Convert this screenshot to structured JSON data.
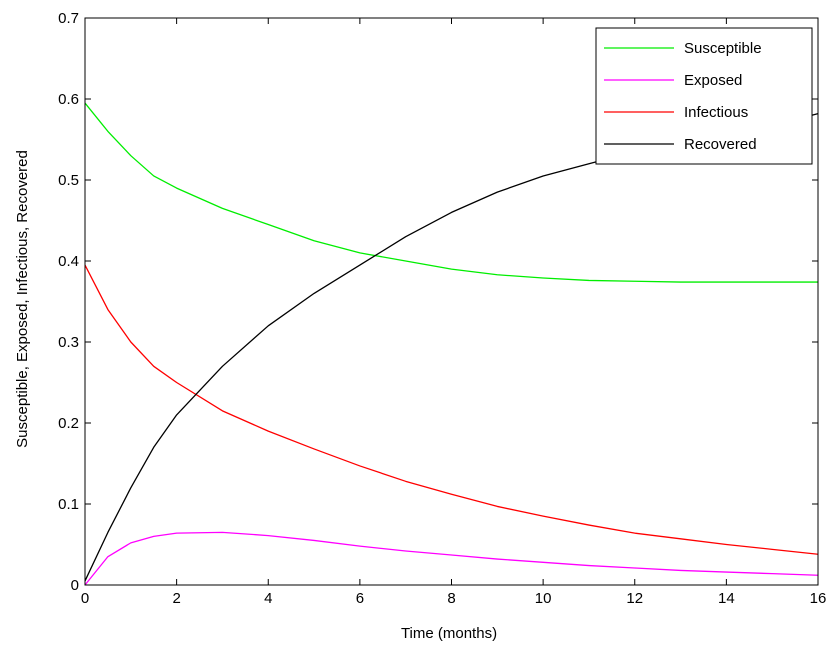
{
  "chart_data": {
    "type": "line",
    "xlabel": "Time (months)",
    "ylabel": "Susceptible, Exposed, Infectious, Recovered",
    "xlim": [
      0,
      16
    ],
    "ylim": [
      0,
      0.7
    ],
    "xticks": [
      "0",
      "2",
      "4",
      "6",
      "8",
      "10",
      "12",
      "14",
      "16"
    ],
    "yticks": [
      "0",
      "0.1",
      "0.2",
      "0.3",
      "0.4",
      "0.5",
      "0.6",
      "0.7"
    ],
    "grid": false,
    "legend_position": "top-right",
    "x": [
      0,
      0.5,
      1,
      1.5,
      2,
      3,
      4,
      5,
      6,
      7,
      8,
      9,
      10,
      11,
      12,
      13,
      14,
      15,
      16
    ],
    "series": [
      {
        "name": "Susceptible",
        "color": "#00ee00",
        "values": [
          0.595,
          0.56,
          0.53,
          0.505,
          0.49,
          0.465,
          0.445,
          0.425,
          0.41,
          0.4,
          0.39,
          0.383,
          0.379,
          0.376,
          0.375,
          0.374,
          0.374,
          0.374,
          0.374
        ]
      },
      {
        "name": "Exposed",
        "color": "#ff00ff",
        "values": [
          0.0,
          0.035,
          0.052,
          0.06,
          0.064,
          0.065,
          0.061,
          0.055,
          0.048,
          0.042,
          0.037,
          0.032,
          0.028,
          0.024,
          0.021,
          0.018,
          0.016,
          0.014,
          0.012
        ]
      },
      {
        "name": "Infectious",
        "color": "#ff0000",
        "values": [
          0.395,
          0.34,
          0.3,
          0.27,
          0.25,
          0.215,
          0.19,
          0.168,
          0.147,
          0.128,
          0.112,
          0.097,
          0.085,
          0.074,
          0.064,
          0.057,
          0.05,
          0.044,
          0.038
        ]
      },
      {
        "name": "Recovered",
        "color": "#000000",
        "values": [
          0.005,
          0.065,
          0.12,
          0.17,
          0.21,
          0.27,
          0.32,
          0.36,
          0.395,
          0.43,
          0.46,
          0.485,
          0.505,
          0.52,
          0.535,
          0.545,
          0.555,
          0.567,
          0.582
        ]
      }
    ]
  }
}
